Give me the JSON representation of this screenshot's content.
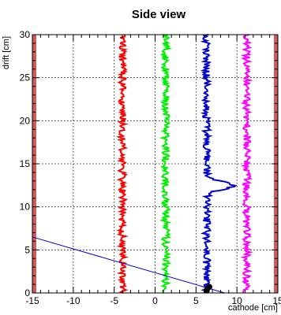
{
  "chart_data": {
    "type": "line",
    "title": "Side view",
    "xlabel": "cathode [cm]",
    "ylabel": "drift [cm]",
    "xlim": [
      -15,
      15
    ],
    "ylim": [
      0,
      30
    ],
    "x_ticks": [
      "-15",
      "-10",
      "-5",
      "0",
      "5",
      "10",
      "15"
    ],
    "y_ticks": [
      "0",
      "5",
      "10",
      "15",
      "20",
      "25",
      "30"
    ],
    "grid": true,
    "boundary_x": [
      -15,
      15
    ],
    "boundary_color": "#cd5c5c",
    "waveforms": [
      {
        "x_center": -4.0,
        "color": "#ff0000",
        "peak_y": null
      },
      {
        "x_center": 1.3,
        "color": "#00ee00",
        "peak_y": null
      },
      {
        "x_center": 6.3,
        "color": "#0000cc",
        "peak_y": 12.5
      },
      {
        "x_center": 11.2,
        "color": "#ff00ff",
        "peak_y": null
      }
    ],
    "track_line": {
      "color": "#0000cc",
      "x": [
        -15,
        8.5
      ],
      "y": [
        6.5,
        0
      ]
    },
    "points": [
      {
        "x": 6.6,
        "y": 0.7
      },
      {
        "x": 6.3,
        "y": 0.3
      }
    ]
  }
}
